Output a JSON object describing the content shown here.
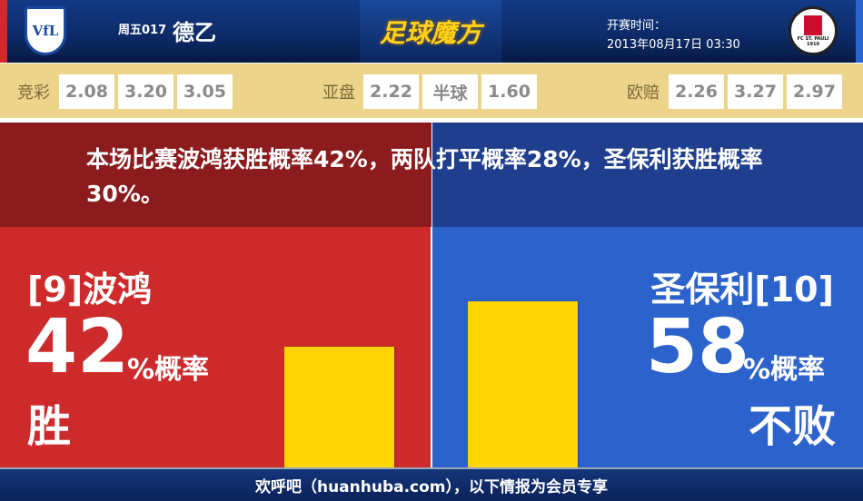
{
  "header": {
    "home_logo_text": "VfL",
    "match_no": "周五017",
    "league": "德乙",
    "brand": "足球魔方",
    "kickoff_label": "开赛时间：",
    "kickoff_time": "2013年08月17日 03:30",
    "away_logo_text": "FC ST. PAULI 1910"
  },
  "odds": {
    "jingcai": {
      "label": "竞彩",
      "values": [
        "2.08",
        "3.20",
        "3.05"
      ]
    },
    "asian": {
      "label": "亚盘",
      "values": [
        "2.22",
        "半球",
        "1.60"
      ]
    },
    "euro": {
      "label": "欧赔",
      "values": [
        "2.26",
        "3.27",
        "2.97"
      ]
    }
  },
  "message": "本场比赛波鸿获胜概率42%，两队打平概率28%，圣保利获胜概率30%。",
  "home": {
    "name": "[9]波鸿",
    "percent": 42,
    "percent_text": "42",
    "pct_suffix": "%概率",
    "result": "胜",
    "color": "#cd2a2b"
  },
  "away": {
    "name": "圣保利[10]",
    "percent": 58,
    "percent_text": "58",
    "pct_suffix": "%概率",
    "result": "不败",
    "color": "#2c62cc"
  },
  "bar_color": "#ffd500",
  "footer": "欢呼吧（huanhuba.com），以下情报为会员专享"
}
